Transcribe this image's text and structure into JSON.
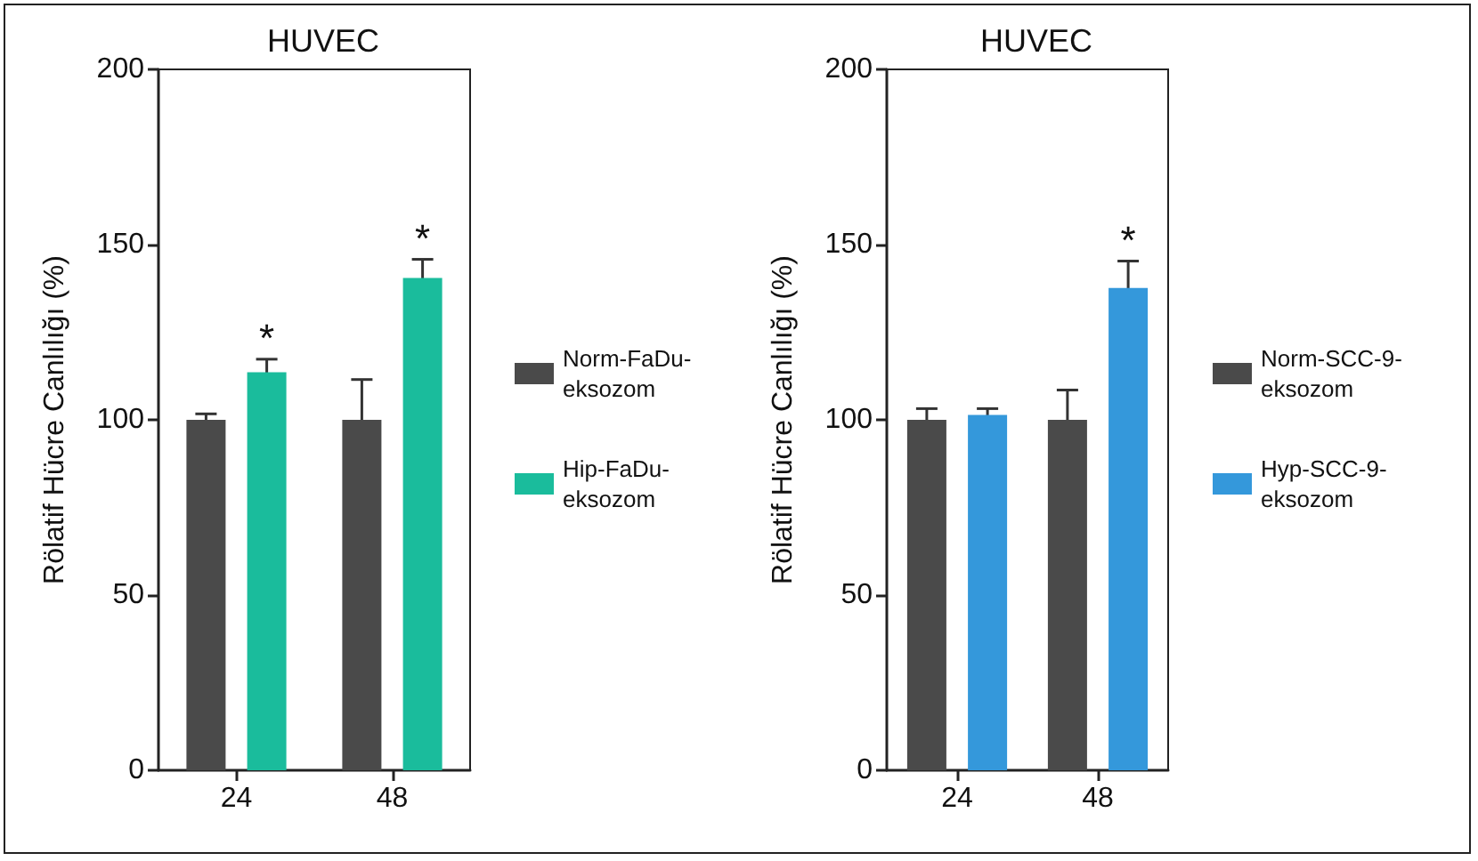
{
  "chart_data": [
    {
      "type": "bar",
      "title": "HUVEC",
      "ylabel": "Rölatif Hücre Canlılığı (%)",
      "categories": [
        "24",
        "48"
      ],
      "series": [
        {
          "name": "Norm-FaDu-eksozom",
          "color": "#4a4a4a",
          "values": [
            100,
            100
          ],
          "errors": [
            1.7,
            11.5
          ]
        },
        {
          "name": "Hip-FaDu-eksozom",
          "color": "#1abc9c",
          "values": [
            113.6,
            140.5
          ],
          "errors": [
            3.7,
            5.3
          ]
        }
      ],
      "ylim": [
        0,
        200
      ],
      "yticks": [
        0,
        50,
        100,
        150,
        200
      ],
      "grid": false,
      "legend": "right",
      "annotations": [
        "*",
        "*"
      ]
    },
    {
      "type": "bar",
      "title": "HUVEC",
      "ylabel": "Rölatif Hücre Canlılığı (%)",
      "categories": [
        "24",
        "48"
      ],
      "series": [
        {
          "name": "Norm-SCC-9-eksozom",
          "color": "#4a4a4a",
          "values": [
            100,
            100
          ],
          "errors": [
            3.2,
            8.5
          ]
        },
        {
          "name": "Hyp-SCC-9-eksozom",
          "color": "#3498db",
          "values": [
            101.4,
            137.6
          ],
          "errors": [
            1.8,
            7.7
          ]
        }
      ],
      "ylim": [
        0,
        200
      ],
      "yticks": [
        0,
        50,
        100,
        150,
        200
      ],
      "grid": false,
      "legend": "right",
      "annotations": [
        "*"
      ]
    }
  ]
}
